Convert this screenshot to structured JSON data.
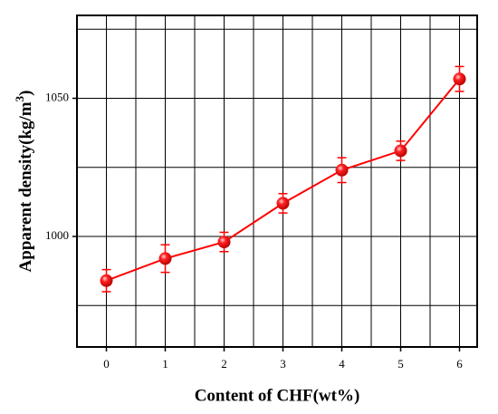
{
  "chart_data": {
    "type": "line",
    "x_label": "Content of CHF(wt%)",
    "y_label_parts": [
      "Apparent density(kg/m",
      "3",
      ")"
    ],
    "x": [
      0,
      1,
      2,
      3,
      4,
      5,
      6
    ],
    "series": [
      {
        "color": "#ff0000",
        "values": [
          984,
          992,
          998,
          1012,
          1024,
          1031,
          1057
        ],
        "errors": [
          4,
          5,
          3.5,
          3.5,
          4.5,
          3.5,
          4.5
        ]
      }
    ],
    "xlim": [
      -0.5,
      6.3
    ],
    "ylim": [
      960,
      1080
    ],
    "xticks": [
      0,
      1,
      2,
      3,
      4,
      5,
      6
    ],
    "yticks": [
      1000,
      1050
    ],
    "x_grid": [
      0,
      0.5,
      1,
      1.5,
      2,
      2.5,
      3,
      3.5,
      4,
      4.5,
      5,
      5.5,
      6
    ],
    "y_grid": [
      975,
      1000,
      1025,
      1050,
      1075
    ],
    "grid": true
  }
}
